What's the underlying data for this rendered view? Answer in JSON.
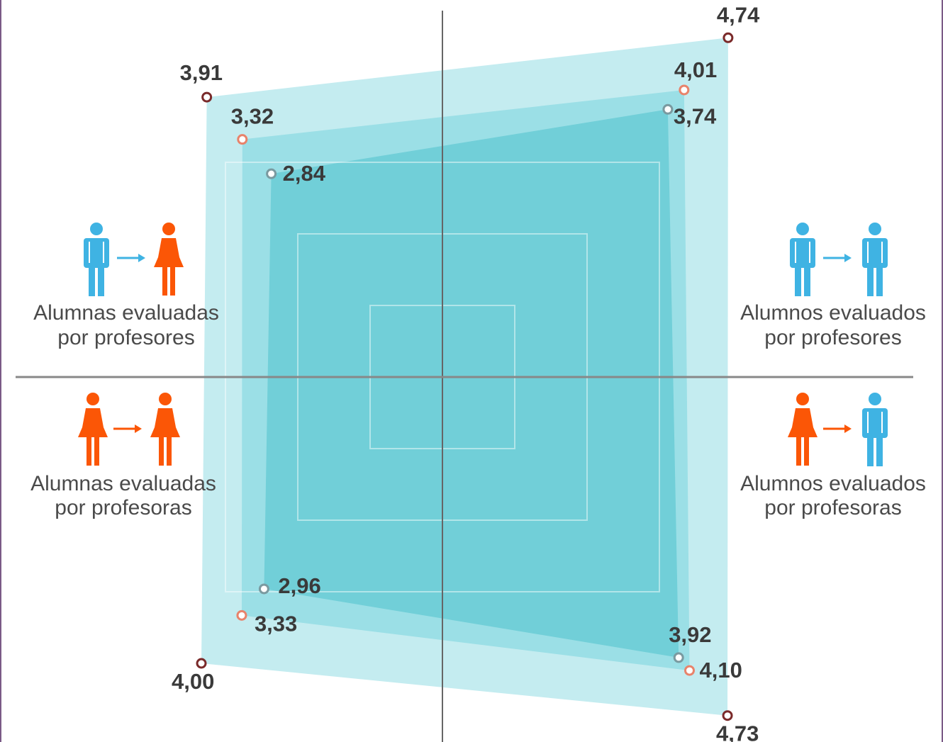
{
  "chart_data": {
    "type": "radar",
    "axes": [
      {
        "key": "upper_left",
        "line1": "Alumnas evaluadas",
        "line2": "por profesores",
        "evaluated": "female",
        "evaluator": "male"
      },
      {
        "key": "upper_right",
        "line1": "Alumnos evaluados",
        "line2": "por profesores",
        "evaluated": "male",
        "evaluator": "male"
      },
      {
        "key": "lower_right",
        "line1": "Alumnos evaluados",
        "line2": "por profesoras",
        "evaluated": "male",
        "evaluator": "female"
      },
      {
        "key": "lower_left",
        "line1": "Alumnas evaluadas",
        "line2": "por profesoras",
        "evaluated": "female",
        "evaluator": "female"
      }
    ],
    "series": [
      {
        "values": [
          3.91,
          4.74,
          4.73,
          4.0
        ],
        "labels": [
          "3,91",
          "4,74",
          "4,73",
          "4,00"
        ],
        "fill": "#c4ecf0",
        "marker": "#7a2a2a"
      },
      {
        "values": [
          3.32,
          4.01,
          4.1,
          3.33
        ],
        "labels": [
          "3,32",
          "4,01",
          "4,10",
          "3,33"
        ],
        "fill": "#9bdfe6",
        "marker": "#e8836b"
      },
      {
        "values": [
          2.84,
          3.74,
          3.92,
          2.96
        ],
        "labels": [
          "2,84",
          "3,74",
          "3,92",
          "2,96"
        ],
        "fill": "#71cfd8",
        "marker": "#7a9aa0"
      }
    ]
  },
  "colors": {
    "male": "#3fb3e3",
    "female": "#fb5606",
    "grid": "#e8f8fa",
    "axis": "#555555"
  }
}
